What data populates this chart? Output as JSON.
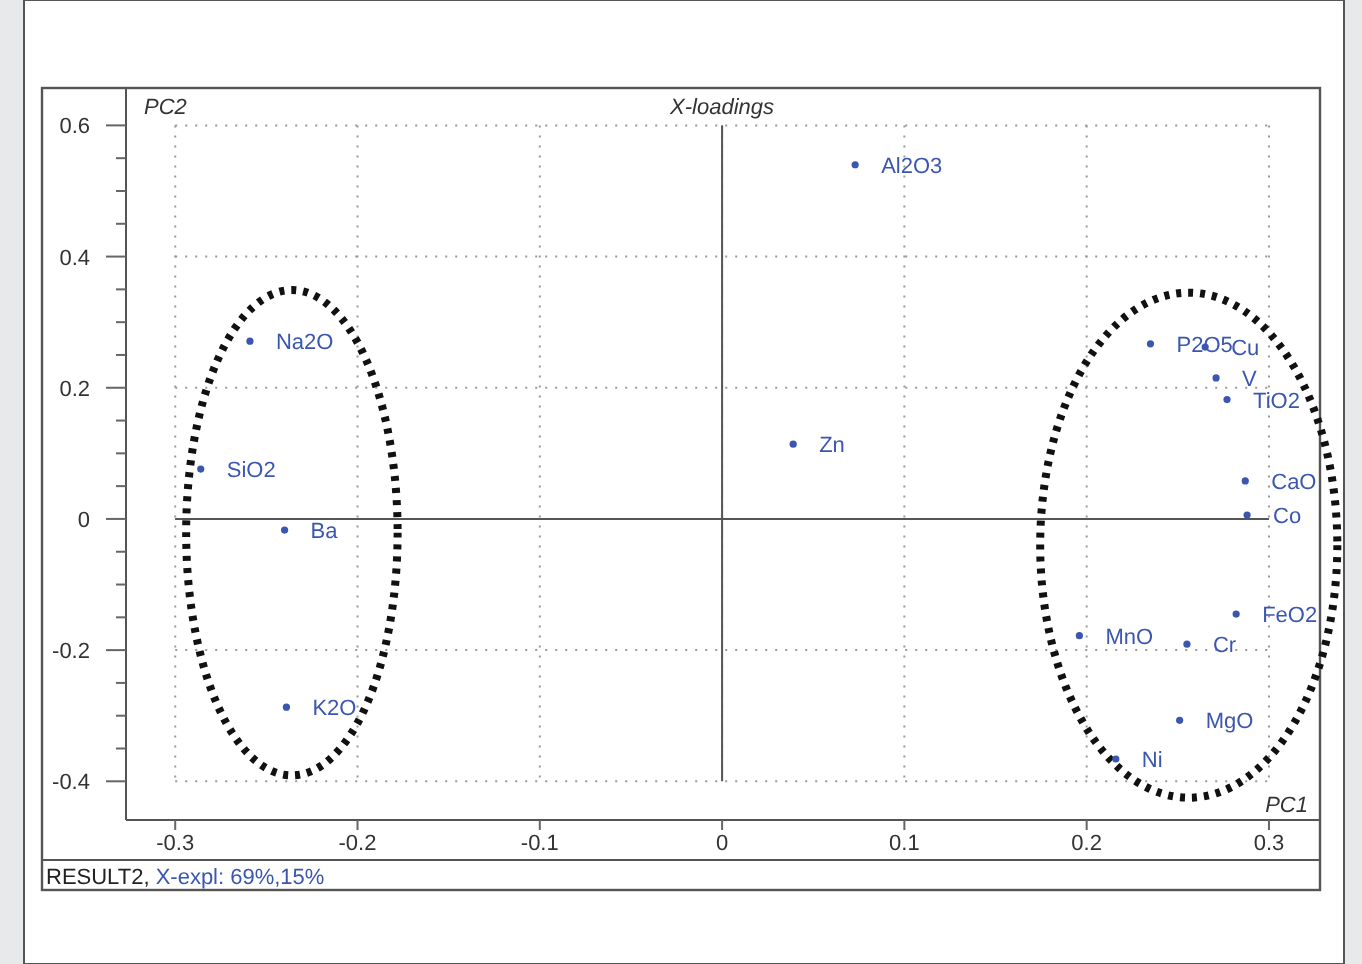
{
  "chart_data": {
    "type": "scatter",
    "title": "X-loadings",
    "xlabel": "PC1",
    "ylabel": "PC2",
    "annotations": [
      "RESULT2,",
      "X-expl: 69%,15%"
    ],
    "xlim": [
      -0.327,
      0.328
    ],
    "ylim": [
      -0.459,
      0.657
    ],
    "xticks": [
      -0.3,
      -0.2,
      -0.1,
      0,
      0.1,
      0.2,
      0.3
    ],
    "yticks": [
      -0.4,
      {
        "value": -0.35,
        "label": null
      },
      -0.2,
      {
        "value": -0.3,
        "label": null
      },
      {
        "value": -0.25,
        "label": null
      },
      {
        "value": -0.15,
        "label": null
      },
      {
        "value": -0.1,
        "label": null
      },
      {
        "value": -0.05,
        "label": null
      },
      0,
      {
        "value": 0.05,
        "label": null
      },
      {
        "value": 0.1,
        "label": null
      },
      {
        "value": 0.15,
        "label": null
      },
      0.2,
      {
        "value": 0.25,
        "label": null
      },
      {
        "value": 0.3,
        "label": null
      },
      {
        "value": 0.35,
        "label": null
      },
      0.4,
      {
        "value": 0.45,
        "label": null
      },
      {
        "value": 0.5,
        "label": null
      },
      {
        "value": 0.55,
        "label": null
      },
      0.6
    ],
    "grid": true,
    "marker": "circle",
    "series": [
      {
        "name": "Al2O3",
        "color": "#3a56b0",
        "x": [
          0.073
        ],
        "values": [
          0.54
        ]
      },
      {
        "name": "Na2O",
        "color": "#3a56b0",
        "x": [
          -0.259
        ],
        "values": [
          0.271
        ]
      },
      {
        "name": "SiO2",
        "color": "#3a56b0",
        "x": [
          -0.286
        ],
        "values": [
          0.076
        ]
      },
      {
        "name": "Ba",
        "color": "#3a56b0",
        "x": [
          -0.24
        ],
        "values": [
          -0.017
        ]
      },
      {
        "name": "K2O",
        "color": "#3a56b0",
        "x": [
          -0.239
        ],
        "values": [
          -0.287
        ]
      },
      {
        "name": "Zn",
        "color": "#3a56b0",
        "x": [
          0.039
        ],
        "values": [
          0.114
        ]
      },
      {
        "name": "P2O5",
        "color": "#3a56b0",
        "x": [
          0.235
        ],
        "values": [
          0.267
        ]
      },
      {
        "name": "Cu",
        "color": "#3a56b0",
        "x": [
          0.265
        ],
        "values": [
          0.262
        ]
      },
      {
        "name": "V",
        "color": "#3a56b0",
        "x": [
          0.271
        ],
        "values": [
          0.215
        ]
      },
      {
        "name": "TiO2",
        "color": "#3a56b0",
        "x": [
          0.277
        ],
        "values": [
          0.182
        ]
      },
      {
        "name": "CaO",
        "color": "#3a56b0",
        "x": [
          0.287
        ],
        "values": [
          0.058
        ]
      },
      {
        "name": "Co",
        "color": "#3a56b0",
        "x": [
          0.288
        ],
        "values": [
          0.006
        ]
      },
      {
        "name": "FeO2",
        "color": "#3a56b0",
        "x": [
          0.282
        ],
        "values": [
          -0.145
        ]
      },
      {
        "name": "MnO",
        "color": "#3a56b0",
        "x": [
          0.196
        ],
        "values": [
          -0.178
        ]
      },
      {
        "name": "Cr",
        "color": "#3a56b0",
        "x": [
          0.255
        ],
        "values": [
          -0.191
        ]
      },
      {
        "name": "MgO",
        "color": "#3a56b0",
        "x": [
          0.251
        ],
        "values": [
          -0.307
        ]
      },
      {
        "name": "Ni",
        "color": "#3a56b0",
        "x": [
          0.216
        ],
        "values": [
          -0.366
        ]
      }
    ]
  }
}
